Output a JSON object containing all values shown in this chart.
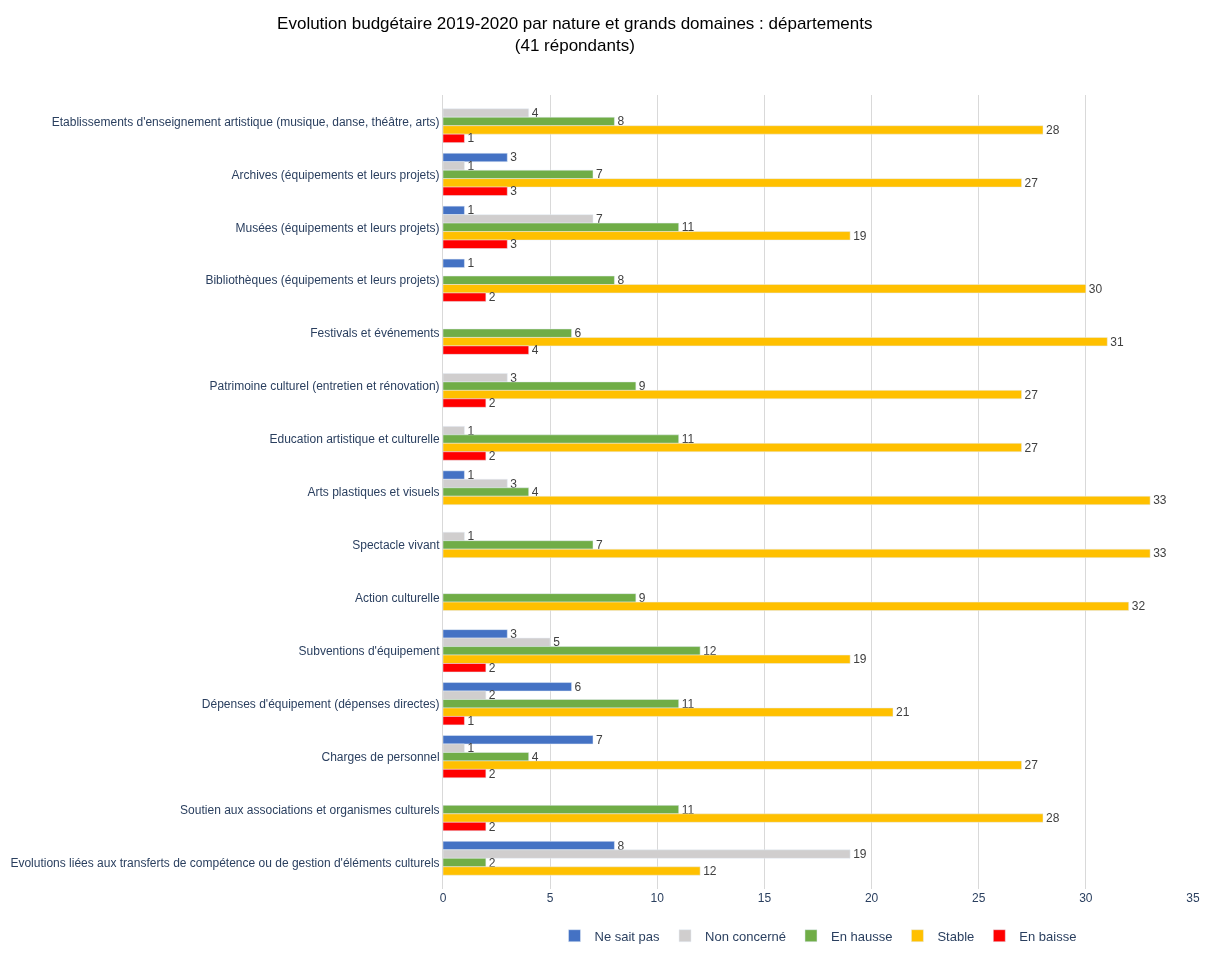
{
  "chart_data": {
    "type": "bar",
    "orientation": "horizontal",
    "title": "Evolution budgétaire 2019-2020 par nature et grands domaines : départements\n(41 répondants)",
    "categories": [
      "Etablissements d'enseignement artistique (musique, danse, théâtre, arts)",
      "Archives (équipements et leurs projets)",
      "Musées (équipements et leurs projets)",
      "Bibliothèques (équipements et leurs projets)",
      "Festivals et événements",
      "Patrimoine culturel (entretien et rénovation)",
      "Education artistique et culturelle",
      "Arts plastiques et visuels",
      "Spectacle vivant",
      "Action culturelle",
      "Subventions d'équipement",
      "Dépenses d'équipement (dépenses directes)",
      "Charges de personnel",
      "Soutien aux associations et organismes culturels",
      "Evolutions liées aux transferts de compétence ou de gestion d'éléments culturels"
    ],
    "series": [
      {
        "name": "Ne sait pas",
        "color": "#4472c4",
        "values": [
          null,
          3,
          1,
          1,
          null,
          null,
          null,
          1,
          null,
          null,
          3,
          6,
          7,
          null,
          8
        ]
      },
      {
        "name": "Non concerné",
        "color": "#d0cece",
        "values": [
          4,
          1,
          7,
          null,
          null,
          3,
          1,
          3,
          1,
          null,
          5,
          2,
          1,
          null,
          19
        ]
      },
      {
        "name": "En hausse",
        "color": "#70ad47",
        "values": [
          8,
          7,
          11,
          8,
          6,
          9,
          11,
          4,
          7,
          9,
          12,
          11,
          4,
          11,
          2
        ]
      },
      {
        "name": "Stable",
        "color": "#ffc000",
        "values": [
          28,
          27,
          19,
          30,
          31,
          27,
          27,
          33,
          33,
          32,
          19,
          21,
          27,
          28,
          12
        ]
      },
      {
        "name": "En baisse",
        "color": "#ff0000",
        "values": [
          1,
          3,
          3,
          2,
          4,
          2,
          2,
          null,
          null,
          null,
          2,
          1,
          2,
          2,
          null
        ]
      }
    ],
    "xlim": [
      0,
      35
    ],
    "xticks": [
      0,
      5,
      10,
      15,
      20,
      25,
      30,
      35
    ],
    "grid": "x",
    "legend": "bottom",
    "data_labels": true
  }
}
